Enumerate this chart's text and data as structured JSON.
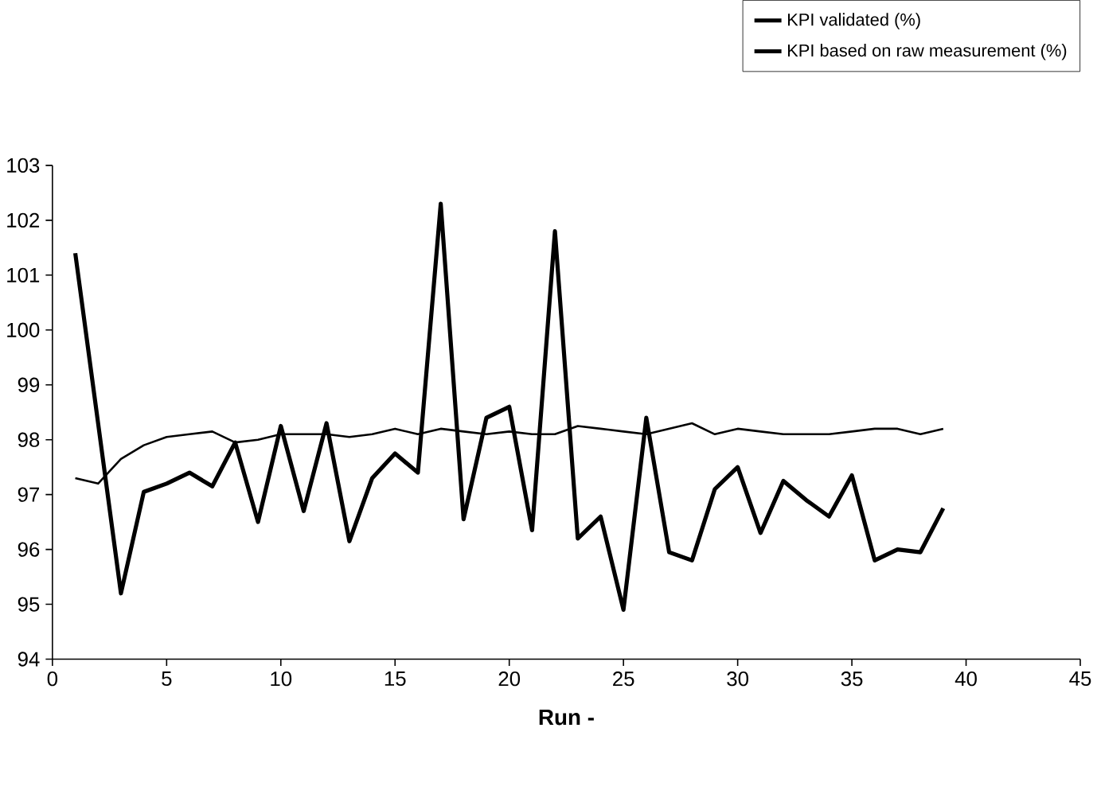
{
  "chart_data": {
    "type": "line",
    "xlabel": "**Run -**",
    "x": [
      1,
      2,
      3,
      4,
      5,
      6,
      7,
      8,
      9,
      10,
      11,
      12,
      13,
      14,
      15,
      16,
      17,
      18,
      19,
      20,
      21,
      22,
      23,
      24,
      25,
      26,
      27,
      28,
      29,
      30,
      31,
      32,
      33,
      34,
      35,
      36,
      37,
      38,
      39
    ],
    "series": [
      {
        "name": "KPI validated (%)",
        "color": "#000000",
        "values": [
          97.3,
          97.2,
          97.65,
          97.9,
          98.05,
          98.1,
          98.15,
          97.95,
          98.0,
          98.1,
          98.1,
          98.1,
          98.05,
          98.1,
          98.2,
          98.1,
          98.2,
          98.15,
          98.1,
          98.15,
          98.1,
          98.1,
          98.25,
          98.2,
          98.15,
          98.1,
          98.2,
          98.3,
          98.1,
          98.2,
          98.15,
          98.1,
          98.1,
          98.1,
          98.15,
          98.2,
          98.2,
          98.1,
          98.2
        ]
      },
      {
        "name": "KPI based on raw measurement (%)",
        "color": "#000000",
        "values": [
          101.4,
          98.3,
          95.2,
          97.05,
          97.2,
          97.4,
          97.15,
          97.95,
          96.5,
          98.25,
          96.7,
          98.3,
          96.15,
          97.3,
          97.75,
          97.4,
          102.3,
          96.55,
          98.4,
          98.6,
          96.35,
          101.8,
          96.2,
          96.6,
          94.9,
          98.4,
          95.95,
          95.8,
          97.1,
          97.5,
          96.3,
          97.25,
          96.9,
          96.6,
          97.35,
          95.8,
          96.0,
          95.95,
          96.75
        ]
      }
    ],
    "xlim": [
      0,
      45
    ],
    "xticks": [
      0,
      5,
      10,
      15,
      20,
      25,
      30,
      35,
      40,
      45
    ],
    "ylim": [
      94,
      103
    ],
    "yticks": [
      94,
      95,
      96,
      97,
      98,
      99,
      100,
      101,
      102,
      103
    ],
    "grid": false,
    "legend": "top right",
    "marker": "none",
    "line_style": "solid"
  }
}
